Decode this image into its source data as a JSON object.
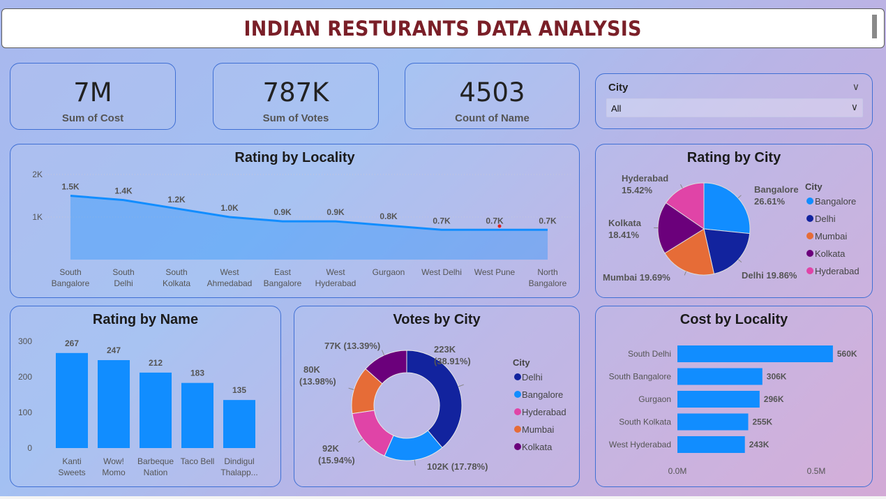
{
  "title": "INDIAN RESTURANTS DATA ANALYSIS",
  "kpis": {
    "cost": {
      "value": "7M",
      "label": "Sum of Cost"
    },
    "votes": {
      "value": "787K",
      "label": "Sum of Votes"
    },
    "count": {
      "value": "4503",
      "label": "Count of Name"
    }
  },
  "slicer": {
    "label": "City",
    "value": "All"
  },
  "colors": {
    "accent": "#118DFF",
    "delhi": "#12239E",
    "bangalore": "#118DFF",
    "mumbai": "#E66C37",
    "kolkata": "#6B007B",
    "hyderabad": "#E044A7",
    "title": "#7a1f28"
  },
  "chart_data": [
    {
      "id": "rating_by_locality",
      "type": "area",
      "title": "Rating by Locality",
      "categories": [
        "South Bangalore",
        "South Delhi",
        "South Kolkata",
        "West Ahmedabad",
        "East Bangalore",
        "West Hyderabad",
        "Gurgaon",
        "West Delhi",
        "West Pune",
        "North Bangalore"
      ],
      "values": [
        1500,
        1400,
        1200,
        1000,
        900,
        900,
        800,
        700,
        700,
        700
      ],
      "data_labels": [
        "1.5K",
        "1.4K",
        "1.2K",
        "1.0K",
        "0.9K",
        "0.9K",
        "0.8K",
        "0.7K",
        "0.7K",
        "0.7K"
      ],
      "yticks": [
        {
          "v": 1000,
          "label": "1K"
        },
        {
          "v": 2000,
          "label": "2K"
        }
      ],
      "ylim": [
        0,
        2000
      ]
    },
    {
      "id": "rating_by_city",
      "type": "pie",
      "title": "Rating by City",
      "legend_title": "City",
      "slices": [
        {
          "name": "Bangalore",
          "value": 26.61,
          "label": "26.61%"
        },
        {
          "name": "Delhi",
          "value": 19.86,
          "label": "19.86%"
        },
        {
          "name": "Mumbai",
          "value": 19.69,
          "label": "19.69%"
        },
        {
          "name": "Kolkata",
          "value": 18.41,
          "label": "18.41%"
        },
        {
          "name": "Hyderabad",
          "value": 15.42,
          "label": "15.42%"
        }
      ]
    },
    {
      "id": "rating_by_name",
      "type": "bar",
      "title": "Rating by Name",
      "categories": [
        [
          "Kanti",
          "Sweets"
        ],
        [
          "Wow!",
          "Momo"
        ],
        [
          "Barbeque",
          "Nation"
        ],
        [
          "Taco Bell"
        ],
        [
          "Dindigul",
          "Thalapp..."
        ]
      ],
      "values": [
        267,
        247,
        212,
        183,
        135
      ],
      "yticks": [
        0,
        100,
        200,
        300
      ],
      "ylim": [
        0,
        300
      ]
    },
    {
      "id": "votes_by_city",
      "type": "pie",
      "title": "Votes by City",
      "legend_title": "City",
      "slices": [
        {
          "name": "Delhi",
          "value": 223,
          "label": [
            "223K",
            "(38.91%)"
          ]
        },
        {
          "name": "Bangalore",
          "value": 102,
          "label": [
            "102K (17.78%)"
          ]
        },
        {
          "name": "Hyderabad",
          "value": 92,
          "label": [
            "92K",
            "(15.94%)"
          ]
        },
        {
          "name": "Mumbai",
          "value": 80,
          "label": [
            "80K",
            "(13.98%)"
          ]
        },
        {
          "name": "Kolkata",
          "value": 77,
          "label": [
            "77K (13.39%)"
          ]
        }
      ]
    },
    {
      "id": "cost_by_locality",
      "type": "bar",
      "orientation": "horizontal",
      "title": "Cost by Locality",
      "categories": [
        "South Delhi",
        "South Bangalore",
        "Gurgaon",
        "South Kolkata",
        "West Hyderabad"
      ],
      "values": [
        560000,
        306000,
        296000,
        255000,
        243000
      ],
      "data_labels": [
        "560K",
        "306K",
        "296K",
        "255K",
        "243K"
      ],
      "xticks": [
        {
          "v": 0,
          "label": "0.0M"
        },
        {
          "v": 500000,
          "label": "0.5M"
        }
      ]
    }
  ]
}
